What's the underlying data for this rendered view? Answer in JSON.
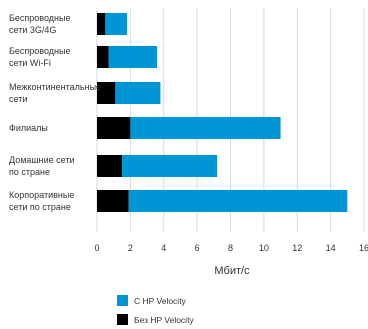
{
  "chart_data": {
    "type": "bar",
    "orientation": "horizontal",
    "stacked": true,
    "categories": [
      [
        "Беспроводные",
        "сети 3G/4G"
      ],
      [
        "Беспроводные",
        "сети Wi-Fi"
      ],
      [
        "Межконтинентальные",
        "сети"
      ],
      [
        "Филиалы"
      ],
      [
        "Домашние сети",
        "по стране"
      ],
      [
        "Корпоративные",
        "сети по стране"
      ]
    ],
    "series": [
      {
        "name": "Без HP Velocity",
        "color": "#000000",
        "values": [
          0.5,
          0.7,
          1.1,
          2.0,
          1.5,
          1.9
        ]
      },
      {
        "name": "С HP Velocity",
        "color": "#0096D6",
        "values": [
          1.3,
          2.9,
          2.7,
          9.0,
          5.7,
          13.1
        ]
      }
    ],
    "totals": [
      1.8,
      3.6,
      3.8,
      11.0,
      7.2,
      15.0
    ],
    "xlabel": "Мбит/с",
    "xlim": [
      0,
      16
    ],
    "xticks": [
      0,
      2,
      4,
      6,
      8,
      10,
      12,
      14,
      16
    ],
    "grid": true,
    "legend": {
      "position": "bottom",
      "items": [
        {
          "label": "С HP Velocity",
          "color": "#0096D6"
        },
        {
          "label": "Без HP Velocity",
          "color": "#000000"
        }
      ]
    }
  }
}
